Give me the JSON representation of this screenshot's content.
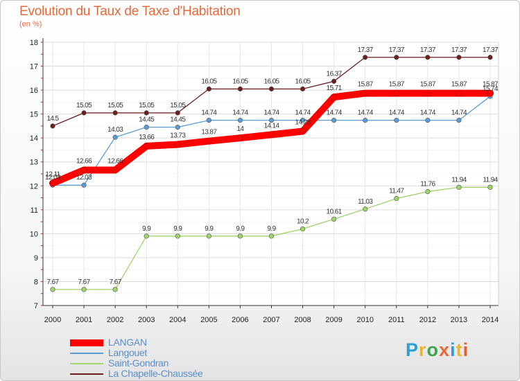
{
  "header": {
    "title": "Evolution du Taux de Taxe d'Habitation",
    "subtitle": "(en %)"
  },
  "logo": {
    "text": "Proxiti",
    "colors": [
      "#2a9fd6",
      "#e8b53a",
      "#3aa84a",
      "#e8683a",
      "#2a9fd6",
      "#e8b53a",
      "#e85a3a"
    ]
  },
  "chart_data": {
    "type": "line",
    "title": "Evolution du Taux de Taxe d'Habitation",
    "ylabel": "(en %)",
    "xlabel": "",
    "ylim": [
      7,
      18
    ],
    "yticks": [
      7,
      8,
      9,
      10,
      11,
      12,
      13,
      14,
      15,
      16,
      17,
      18
    ],
    "x": [
      2000,
      2001,
      2002,
      2003,
      2004,
      2005,
      2006,
      2007,
      2008,
      2009,
      2010,
      2011,
      2012,
      2013,
      2014
    ],
    "grid": true,
    "legend_position": "bottom-left",
    "series": [
      {
        "name": "La Chapelle-Chaussée",
        "color": "#6b1f1f",
        "values": [
          14.5,
          15.05,
          15.05,
          15.05,
          15.05,
          16.05,
          16.05,
          16.05,
          16.05,
          16.37,
          17.37,
          17.37,
          17.37,
          17.37,
          17.37
        ]
      },
      {
        "name": "Langouet",
        "color": "#5b9bd5",
        "values": [
          12.03,
          12.03,
          14.03,
          14.45,
          14.45,
          14.74,
          14.74,
          14.74,
          14.74,
          14.74,
          14.74,
          14.74,
          14.74,
          14.74,
          15.74
        ]
      },
      {
        "name": "Saint-Gondran",
        "color": "#9ed46a",
        "values": [
          7.67,
          7.67,
          7.67,
          9.9,
          9.9,
          9.9,
          9.9,
          9.9,
          10.2,
          10.61,
          11.03,
          11.47,
          11.76,
          11.94,
          11.94
        ]
      },
      {
        "name": "LANGAN",
        "color": "#ff0000",
        "values": [
          12.11,
          12.66,
          12.66,
          13.66,
          13.73,
          13.87,
          14,
          14.14,
          14.28,
          15.71,
          15.87,
          15.87,
          15.87,
          15.87,
          15.87
        ]
      }
    ],
    "legend": [
      {
        "name": "LANGAN",
        "color": "#ff0000"
      },
      {
        "name": "Langouet",
        "color": "#5b9bd5"
      },
      {
        "name": "Saint-Gondran",
        "color": "#9ed46a"
      },
      {
        "name": "La Chapelle-Chaussée",
        "color": "#6b1f1f"
      }
    ]
  }
}
